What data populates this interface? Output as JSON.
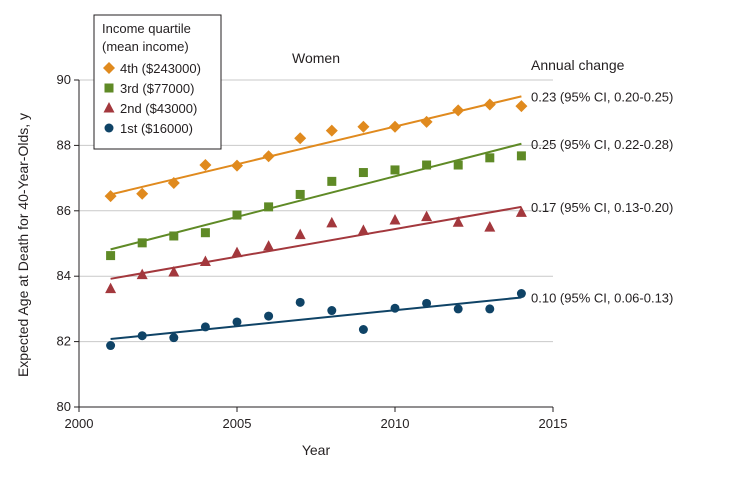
{
  "chart_data": {
    "type": "scatter",
    "title": "Women",
    "xlabel": "Year",
    "ylabel": "Expected Age at Death for 40-Year-Olds, y",
    "xlim": [
      2000,
      2015
    ],
    "ylim": [
      80,
      90
    ],
    "xticks": [
      "2000",
      "2005",
      "2010",
      "2015"
    ],
    "yticks": [
      "80",
      "82",
      "84",
      "86",
      "88",
      "90"
    ],
    "grid": "horizontal",
    "legend": {
      "title_line1": "Income quartile",
      "title_line2": "(mean income)",
      "placement": "top-left"
    },
    "annual_change_header": "Annual change",
    "x": [
      2001,
      2002,
      2003,
      2004,
      2005,
      2006,
      2007,
      2008,
      2009,
      2010,
      2011,
      2012,
      2013,
      2014
    ],
    "series": [
      {
        "name": "4th ($243000)",
        "color": "#e08a1e",
        "marker": "diamond",
        "values": [
          86.45,
          86.52,
          86.85,
          87.4,
          87.38,
          87.67,
          88.22,
          88.45,
          88.57,
          88.57,
          88.72,
          89.07,
          89.25,
          89.2
        ],
        "trend": [
          86.5,
          89.5
        ],
        "annual_change": "0.23 (95% CI, 0.20-0.25)"
      },
      {
        "name": "3rd ($77000)",
        "color": "#5f8a26",
        "marker": "square",
        "values": [
          84.63,
          85.02,
          85.23,
          85.33,
          85.87,
          86.12,
          86.5,
          86.9,
          87.17,
          87.25,
          87.4,
          87.4,
          87.62,
          87.68
        ],
        "trend": [
          84.82,
          88.05
        ],
        "annual_change": "0.25 (95% CI, 0.22-0.28)"
      },
      {
        "name": "2nd ($43000)",
        "color": "#a3383d",
        "marker": "triangle",
        "values": [
          83.62,
          84.05,
          84.13,
          84.45,
          84.72,
          84.92,
          85.27,
          85.63,
          85.4,
          85.72,
          85.82,
          85.65,
          85.5,
          85.95
        ],
        "trend": [
          83.92,
          86.12
        ],
        "annual_change": "0.17 (95% CI, 0.13-0.20)"
      },
      {
        "name": "1st ($16000)",
        "color": "#0f4366",
        "marker": "circle",
        "values": [
          81.88,
          82.18,
          82.12,
          82.45,
          82.6,
          82.78,
          83.2,
          82.95,
          82.37,
          83.02,
          83.17,
          83.0,
          83.0,
          83.47
        ],
        "trend": [
          82.08,
          83.35
        ],
        "annual_change": "0.10 (95% CI, 0.06-0.13)"
      }
    ]
  }
}
